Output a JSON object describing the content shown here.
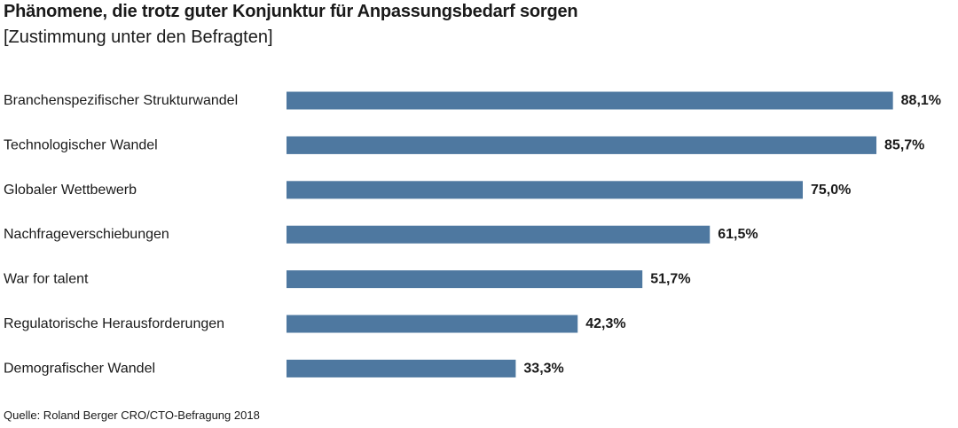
{
  "title": "Phänomene, die trotz guter Konjunktur für Anpassungsbedarf sorgen",
  "subtitle": "[Zustimmung unter den Befragten]",
  "source": "Quelle: Roland Berger CRO/CTO-Befragung 2018",
  "colors": {
    "bar": "#4e78a0"
  },
  "chart_data": {
    "type": "bar",
    "orientation": "horizontal",
    "categories": [
      "Branchenspezifischer Strukturwandel",
      "Technologischer Wandel",
      "Globaler Wettbewerb",
      "Nachfrageverschiebungen",
      "War for talent",
      "Regulatorische Herausforderungen",
      "Demografischer Wandel"
    ],
    "values": [
      88.1,
      85.7,
      75.0,
      61.5,
      51.7,
      42.3,
      33.3
    ],
    "value_labels": [
      "88,1%",
      "85,7%",
      "75,0%",
      "61,5%",
      "51,7%",
      "42,3%",
      "33,3%"
    ],
    "unit": "%",
    "xlim": [
      0,
      100
    ],
    "grid": false,
    "legend": "none"
  }
}
